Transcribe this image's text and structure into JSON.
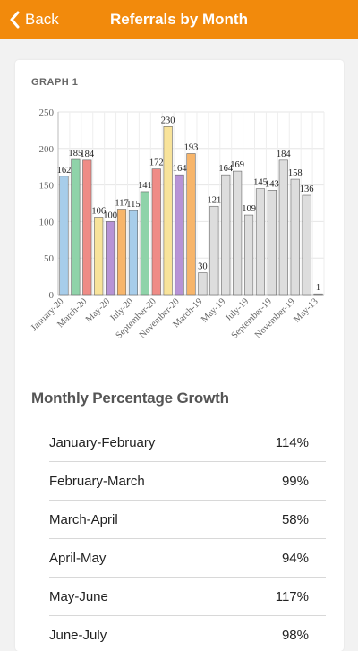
{
  "header": {
    "back_label": "Back",
    "title": "Referrals by Month"
  },
  "graph": {
    "label": "GRAPH 1"
  },
  "chart_data": {
    "type": "bar",
    "ylim": [
      0,
      250
    ],
    "yticks": [
      0,
      50,
      100,
      150,
      200,
      250
    ],
    "grid": true,
    "bars": [
      {
        "label": "January-20",
        "value": 162,
        "color": "#a7cdea"
      },
      {
        "label": "",
        "value": 185,
        "color": "#8fd3a9"
      },
      {
        "label": "March-20",
        "value": 184,
        "color": "#ef8b86"
      },
      {
        "label": "",
        "value": 106,
        "color": "#f8e39a"
      },
      {
        "label": "May-20",
        "value": 100,
        "color": "#b793d6"
      },
      {
        "label": "",
        "value": 117,
        "color": "#f7b56a"
      },
      {
        "label": "July-20",
        "value": 115,
        "color": "#a7cdea"
      },
      {
        "label": "",
        "value": 141,
        "color": "#8fd3a9"
      },
      {
        "label": "September-20",
        "value": 172,
        "color": "#ef8b86"
      },
      {
        "label": "",
        "value": 230,
        "color": "#f8e39a"
      },
      {
        "label": "November-20",
        "value": 164,
        "color": "#b793d6"
      },
      {
        "label": "",
        "value": 193,
        "color": "#f7b56a"
      },
      {
        "label": "March-19",
        "value": 30,
        "color": "#dddddd"
      },
      {
        "label": "",
        "value": 121,
        "color": "#dddddd"
      },
      {
        "label": "May-19",
        "value": 164,
        "color": "#dddddd"
      },
      {
        "label": "",
        "value": 169,
        "color": "#dddddd"
      },
      {
        "label": "July-19",
        "value": 109,
        "color": "#dddddd"
      },
      {
        "label": "",
        "value": 145,
        "color": "#dddddd"
      },
      {
        "label": "September-19",
        "value": 143,
        "color": "#dddddd"
      },
      {
        "label": "",
        "value": 184,
        "color": "#dddddd"
      },
      {
        "label": "November-19",
        "value": 158,
        "color": "#dddddd"
      },
      {
        "label": "",
        "value": 136,
        "color": "#dddddd"
      },
      {
        "label": "May-13",
        "value": 1,
        "color": "#dddddd"
      }
    ]
  },
  "growth": {
    "title": "Monthly Percentage Growth",
    "rows": [
      {
        "label": "January-February",
        "value": "114%"
      },
      {
        "label": "February-March",
        "value": "99%"
      },
      {
        "label": "March-April",
        "value": "58%"
      },
      {
        "label": "April-May",
        "value": "94%"
      },
      {
        "label": "May-June",
        "value": "117%"
      },
      {
        "label": "June-July",
        "value": "98%"
      }
    ]
  }
}
